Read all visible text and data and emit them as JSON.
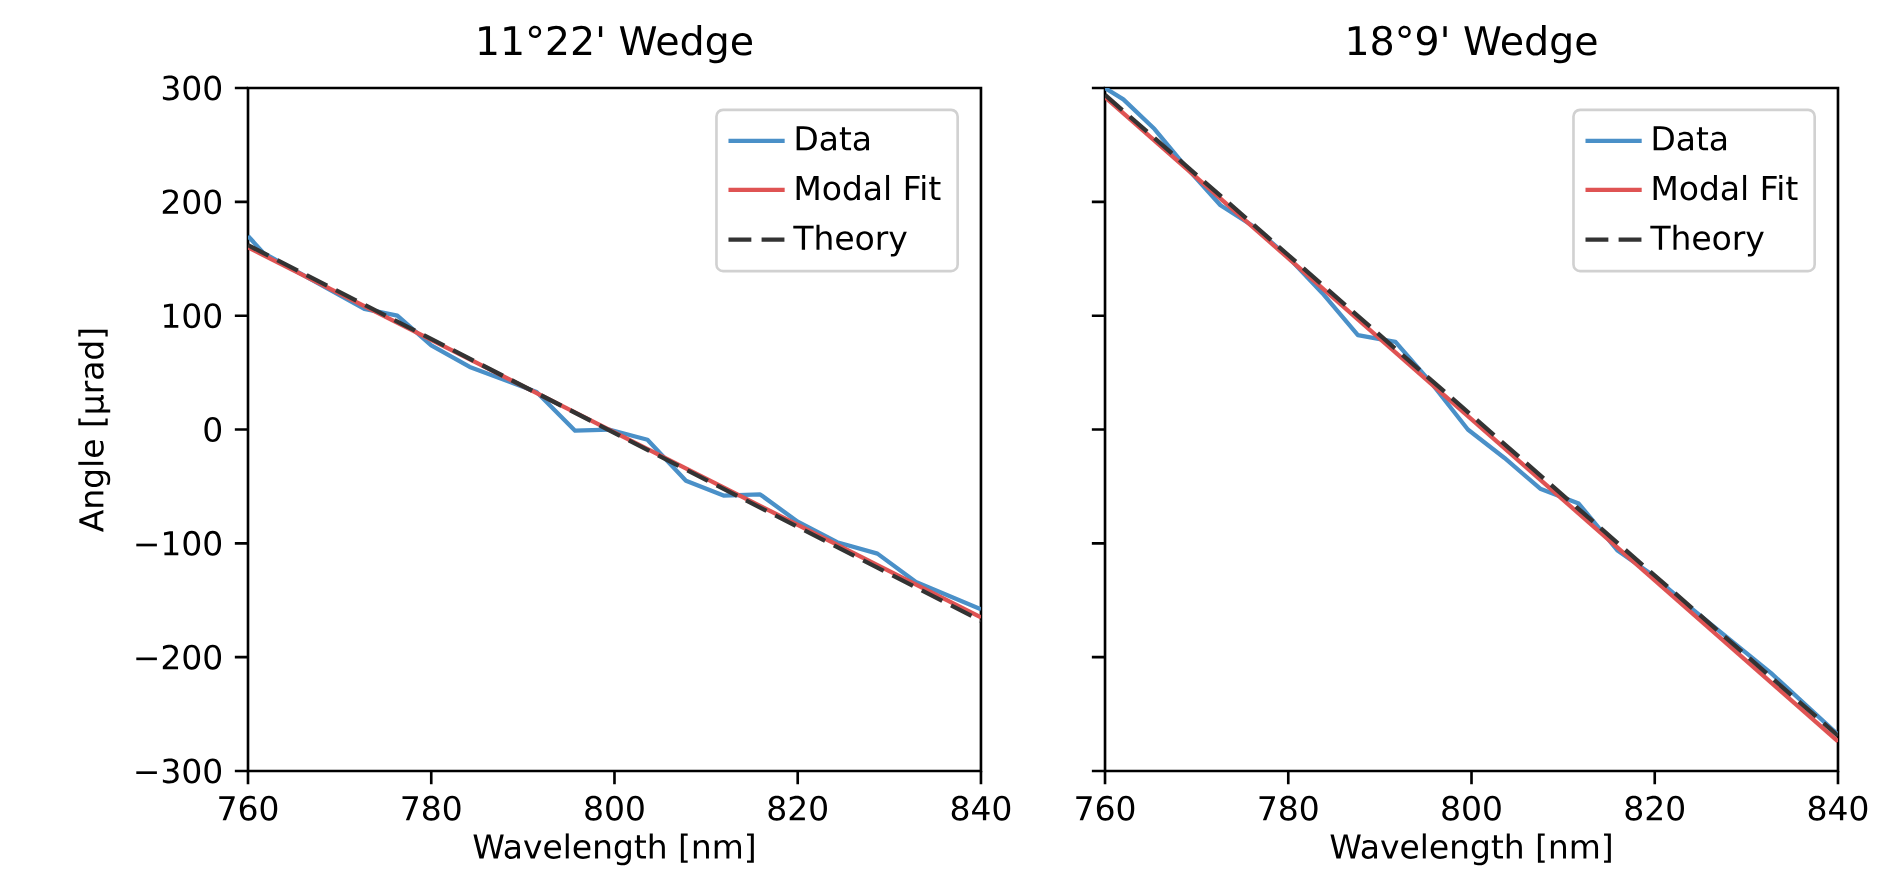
{
  "chart_data": [
    {
      "type": "line",
      "title": "11°22' Wedge",
      "xlabel": "Wavelength [nm]",
      "ylabel": "Angle [μrad]",
      "xlim": [
        760,
        840
      ],
      "ylim": [
        -300,
        300
      ],
      "xticks": [
        760,
        780,
        800,
        820,
        840
      ],
      "yticks": [
        {
          "value": -300,
          "label": "−300"
        },
        {
          "value": -200,
          "label": "−200"
        },
        {
          "value": -100,
          "label": "−100"
        },
        0,
        100,
        200,
        300
      ],
      "legend": "top right",
      "series": [
        {
          "name": "Data",
          "color": "#4a90c8",
          "line_style": "solid",
          "x": [
            760,
            761.7,
            772.7,
            776.3,
            780,
            784.2,
            791.5,
            795.7,
            799.4,
            803.6,
            807.8,
            811.9,
            815.9,
            820,
            824.3,
            828.7,
            832.9,
            840
          ],
          "values": [
            170,
            155,
            106,
            100,
            74,
            55,
            33,
            -1,
            0,
            -9,
            -45,
            -58,
            -57,
            -81,
            -99,
            -109,
            -134,
            -158
          ]
        },
        {
          "name": "Modal Fit",
          "color": "#df5353",
          "line_style": "solid",
          "x": [
            760,
            840
          ],
          "values": [
            160,
            -165
          ]
        },
        {
          "name": "Theory",
          "color": "#333333",
          "line_style": "dashed",
          "x": [
            760,
            840
          ],
          "values": [
            162,
            -168
          ]
        }
      ]
    },
    {
      "type": "line",
      "title": "18°9' Wedge",
      "xlabel": "Wavelength [nm]",
      "xlim": [
        760,
        840
      ],
      "ylim": [
        -300,
        300
      ],
      "xticks": [
        760,
        780,
        800,
        820,
        840
      ],
      "yticks": [
        -300,
        -200,
        -100,
        0,
        100,
        200,
        300
      ],
      "tick_labels": "x",
      "legend": "top right",
      "series": [
        {
          "name": "Data",
          "color": "#4a90c8",
          "line_style": "solid",
          "x": [
            760,
            762,
            765.4,
            768.8,
            772.6,
            776.1,
            779.8,
            783.7,
            787.6,
            790.3,
            791.7,
            795.7,
            799.6,
            803.6,
            807.5,
            811.7,
            815.9,
            819.6,
            824.3,
            832.7,
            840
          ],
          "values": [
            300,
            290,
            264,
            231,
            197,
            179,
            153,
            120,
            83,
            79,
            77,
            40,
            0,
            -25,
            -52,
            -65,
            -106,
            -127,
            -159,
            -214,
            -268
          ]
        },
        {
          "name": "Modal Fit",
          "color": "#df5353",
          "line_style": "solid",
          "x": [
            760,
            840
          ],
          "values": [
            292,
            -274
          ]
        },
        {
          "name": "Theory",
          "color": "#333333",
          "line_style": "dashed",
          "x": [
            760,
            840
          ],
          "values": [
            294,
            -269
          ]
        }
      ]
    }
  ]
}
